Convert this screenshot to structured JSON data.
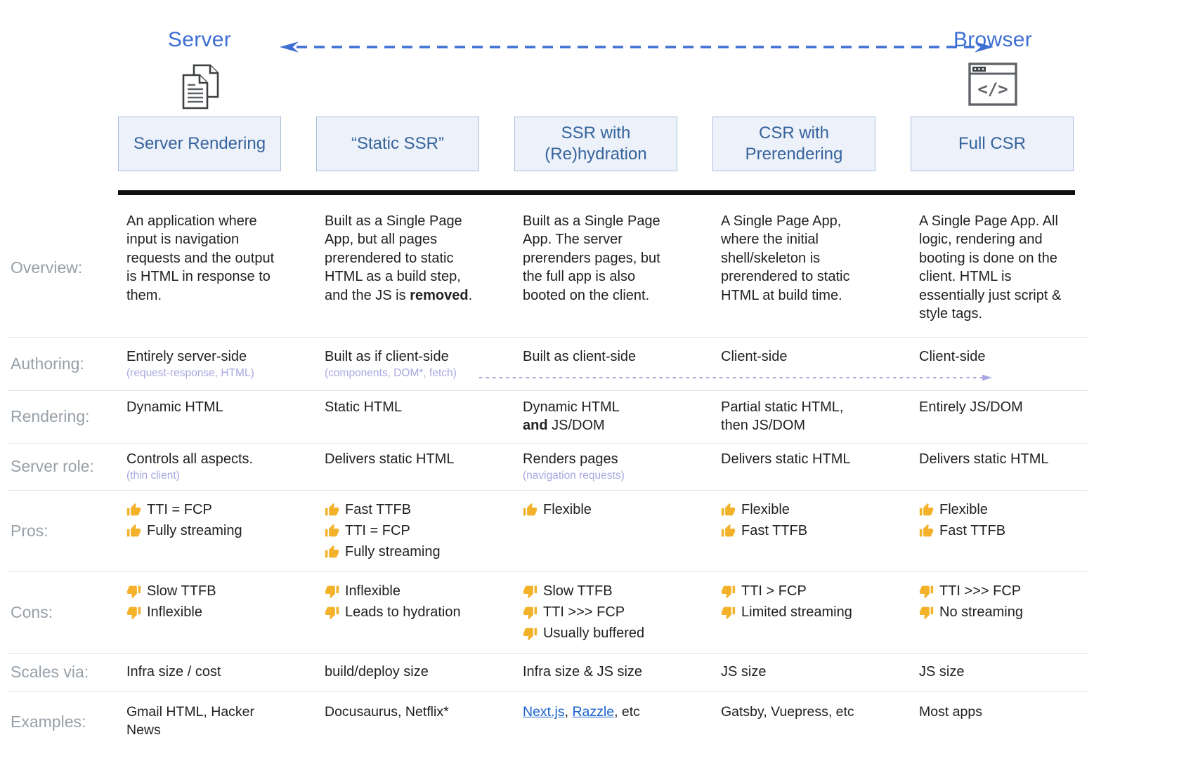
{
  "colors": {
    "accent_blue": "#3d6fd2",
    "header_button_text": "#35639d",
    "header_button_bg": "#edf1f9",
    "header_button_border": "#a9bfdd",
    "row_label_gray": "#98a0a8",
    "body_text": "#212121",
    "subnote_purple": "#a9a7e0",
    "link_blue": "#1a63cf",
    "thumb_yellow": "#f3b229",
    "header_divider": "#101010"
  },
  "top": {
    "server_label": "Server",
    "browser_label": "Browser",
    "browser_icon_glyph": "</>"
  },
  "headers": [
    "Server Rendering",
    "“Static SSR”",
    "SSR with (Re)hydration",
    "CSR with Prerendering",
    "Full CSR"
  ],
  "rows": {
    "overview": {
      "label": "Overview:",
      "cells": [
        "An application where input is navigation requests and the output is HTML in response to them.",
        "Built as a Single Page App, but all pages prerendered to static HTML as a build step, and the JS is **removed**.",
        "Built as a Single Page App. The server prerenders pages, but the full app is also booted on the client.",
        "A Single Page App, where the initial shell/skeleton is prerendered to static HTML at build time.",
        "A Single Page App. All logic, rendering and booting is done on the client. HTML is essentially just script & style tags."
      ]
    },
    "authoring": {
      "label": "Authoring:",
      "cells": [
        {
          "text": "Entirely server-side",
          "note": "(request-response, HTML)"
        },
        {
          "text": "Built as if client-side",
          "note": "(components, DOM*, fetch)"
        },
        {
          "text": "Built as client-side",
          "note": ""
        },
        {
          "text": "Client-side",
          "note": ""
        },
        {
          "text": "Client-side",
          "note": ""
        }
      ]
    },
    "rendering": {
      "label": "Rendering:",
      "cells": [
        "Dynamic HTML",
        "Static HTML",
        "Dynamic HTML\n**and** JS/DOM",
        "Partial static HTML,\nthen JS/DOM",
        "Entirely JS/DOM"
      ]
    },
    "server_role": {
      "label": "Server role:",
      "cells": [
        {
          "text": "Controls all aspects.",
          "note": "(thin client)"
        },
        {
          "text": "Delivers static HTML",
          "note": ""
        },
        {
          "text": "Renders pages",
          "note": "(navigation requests)"
        },
        {
          "text": "Delivers static HTML",
          "note": ""
        },
        {
          "text": "Delivers static HTML",
          "note": ""
        }
      ]
    },
    "pros": {
      "label": "Pros:",
      "cells": [
        [
          "TTI = FCP",
          "Fully streaming"
        ],
        [
          "Fast TTFB",
          "TTI = FCP",
          "Fully streaming"
        ],
        [
          "Flexible"
        ],
        [
          "Flexible",
          "Fast TTFB"
        ],
        [
          "Flexible",
          "Fast TTFB"
        ]
      ]
    },
    "cons": {
      "label": "Cons:",
      "cells": [
        [
          "Slow TTFB",
          "Inflexible"
        ],
        [
          "Inflexible",
          "Leads to hydration"
        ],
        [
          "Slow TTFB",
          "TTI >>> FCP",
          "Usually buffered"
        ],
        [
          "TTI > FCP",
          "Limited streaming"
        ],
        [
          "TTI >>> FCP",
          "No streaming"
        ]
      ]
    },
    "scales": {
      "label": "Scales via:",
      "cells": [
        "Infra size / cost",
        "build/deploy size",
        "Infra size & JS size",
        "JS size",
        "JS size"
      ]
    },
    "examples": {
      "label": "Examples:",
      "cells": [
        "Gmail HTML, Hacker News",
        "Docusaurus, Netflix*",
        "",
        "Gatsby, Vuepress, etc",
        "Most apps"
      ],
      "links_cell": {
        "link1": "Next.js",
        "sep": ", ",
        "link2": "Razzle",
        "rest": ", etc"
      }
    }
  }
}
